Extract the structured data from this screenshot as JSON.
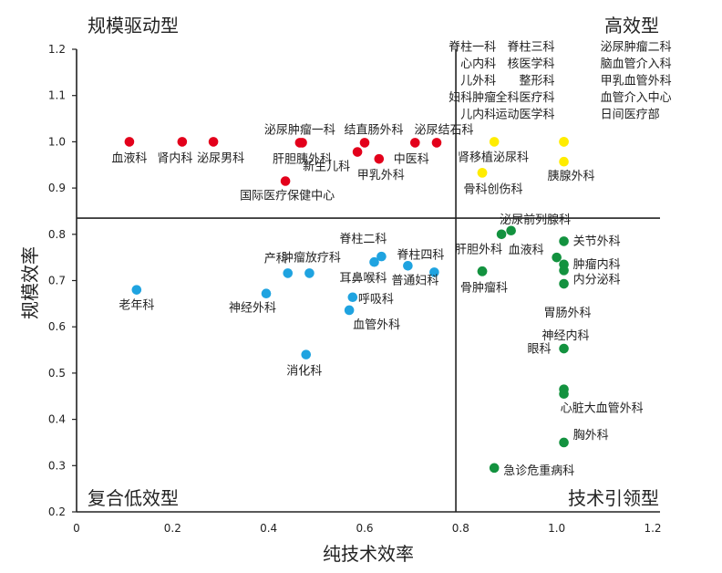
{
  "chart_data": {
    "type": "scatter",
    "xlabel": "纯技术效率",
    "ylabel": "规模效率",
    "xlim": [
      0,
      1.2
    ],
    "ylim": [
      0.2,
      1.2
    ],
    "x_ticks": [
      "0",
      "0.2",
      "0.4",
      "0.6",
      "0.8",
      "1.0",
      "1.2"
    ],
    "y_ticks": [
      "0.2",
      "0.3",
      "0.4",
      "0.5",
      "0.6",
      "0.7",
      "0.8",
      "0.9",
      "1.0",
      "1.1",
      "1.2"
    ],
    "divider_x": 0.79,
    "divider_y": 0.835,
    "grid": false,
    "quadrant_labels": {
      "top_left": "规模驱动型",
      "top_right": "高效型",
      "bottom_left": "复合低效型",
      "bottom_right": "技术引领型"
    },
    "colors": {
      "规模驱动型": "#e3001b",
      "高效型": "#ffec00",
      "复合低效型": "#1fa3e0",
      "技术引领型": "#13923f"
    },
    "groups": [
      {
        "group": "规模驱动型",
        "points": [
          {
            "x": 0.11,
            "y": 1.0,
            "label": "血液科"
          },
          {
            "x": 0.22,
            "y": 1.0,
            "label": "肾内科"
          },
          {
            "x": 0.285,
            "y": 1.0,
            "label": "泌尿男科"
          },
          {
            "x": 0.465,
            "y": 0.998,
            "label": "泌尿肿瘤一科"
          },
          {
            "x": 0.47,
            "y": 0.998,
            "label": "肝胆胰外科"
          },
          {
            "x": 0.6,
            "y": 0.998,
            "label": "结直肠外科"
          },
          {
            "x": 0.585,
            "y": 0.978,
            "label": "新生儿科"
          },
          {
            "x": 0.63,
            "y": 0.963,
            "label": "甲乳外科"
          },
          {
            "x": 0.705,
            "y": 0.998,
            "label": "中医科"
          },
          {
            "x": 0.75,
            "y": 0.998,
            "label": "泌尿结石科"
          },
          {
            "x": 0.435,
            "y": 0.915,
            "label": "国际医疗保健中心"
          }
        ]
      },
      {
        "group": "高效型",
        "points": [
          {
            "x": 0.87,
            "y": 1.0,
            "label": "脊柱一科 心内科 儿外科 妇科肿瘤 儿内科"
          },
          {
            "x": 1.015,
            "y": 1.0,
            "label": "脊柱三科 核医学科 整形科 全科医疗科 运动医学科"
          },
          {
            "x": 1.015,
            "y": 1.0,
            "label": "泌尿肿瘤二科 脑血管介入科 甲乳血管外科 血管介入中心 日间医疗部"
          },
          {
            "x": 0.845,
            "y": 0.933,
            "label": "肾移植泌尿科"
          },
          {
            "x": 0.845,
            "y": 0.933,
            "label": "骨科创伤科"
          },
          {
            "x": 1.015,
            "y": 0.957,
            "label": "胰腺外科"
          }
        ]
      },
      {
        "group": "复合低效型",
        "points": [
          {
            "x": 0.125,
            "y": 0.68,
            "label": "老年科"
          },
          {
            "x": 0.395,
            "y": 0.672,
            "label": "神经外科"
          },
          {
            "x": 0.44,
            "y": 0.716,
            "label": "产科"
          },
          {
            "x": 0.485,
            "y": 0.716,
            "label": "肿瘤放疗科"
          },
          {
            "x": 0.62,
            "y": 0.74,
            "label": "耳鼻喉科"
          },
          {
            "x": 0.635,
            "y": 0.752,
            "label": "脊柱二科"
          },
          {
            "x": 0.69,
            "y": 0.732,
            "label": "普通妇科"
          },
          {
            "x": 0.745,
            "y": 0.718,
            "label": "脊柱四科"
          },
          {
            "x": 0.575,
            "y": 0.664,
            "label": "呼吸科"
          },
          {
            "x": 0.568,
            "y": 0.636,
            "label": "血管外科"
          },
          {
            "x": 0.478,
            "y": 0.54,
            "label": "消化科"
          }
        ]
      },
      {
        "group": "技术引领型",
        "points": [
          {
            "x": 0.885,
            "y": 0.8,
            "label": "泌尿前列腺科"
          },
          {
            "x": 0.905,
            "y": 0.808,
            "label": ""
          },
          {
            "x": 0.845,
            "y": 0.72,
            "label": "肝胆外科"
          },
          {
            "x": 0.845,
            "y": 0.72,
            "label": "骨肿瘤科"
          },
          {
            "x": 1.0,
            "y": 0.75,
            "label": "血液科"
          },
          {
            "x": 1.015,
            "y": 0.785,
            "label": "关节外科"
          },
          {
            "x": 1.015,
            "y": 0.735,
            "label": "肿瘤内科"
          },
          {
            "x": 1.015,
            "y": 0.722,
            "label": "内分泌科"
          },
          {
            "x": 1.015,
            "y": 0.693,
            "label": "胃肠外科"
          },
          {
            "x": 1.015,
            "y": 0.553,
            "label": "神经内科"
          },
          {
            "x": 1.015,
            "y": 0.465,
            "label": "眼科"
          },
          {
            "x": 1.015,
            "y": 0.455,
            "label": "心脏大血管外科"
          },
          {
            "x": 1.015,
            "y": 0.35,
            "label": "胸外科"
          },
          {
            "x": 0.87,
            "y": 0.295,
            "label": "急诊危重病科"
          }
        ]
      }
    ]
  }
}
